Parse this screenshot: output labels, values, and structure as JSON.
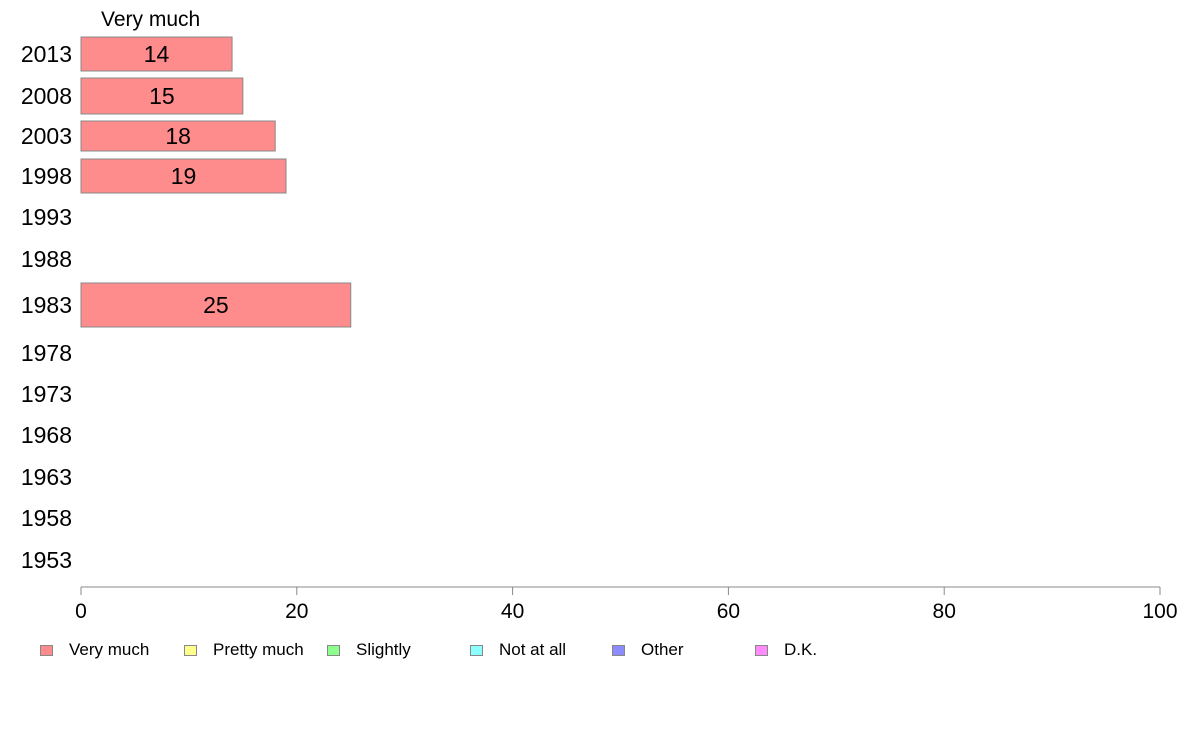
{
  "chart_data": {
    "type": "bar",
    "orientation": "horizontal",
    "series_header": "Very much",
    "categories": [
      "2013",
      "2008",
      "2003",
      "1998",
      "1993",
      "1988",
      "1983",
      "1978",
      "1973",
      "1968",
      "1963",
      "1958",
      "1953"
    ],
    "series": [
      {
        "name": "Very much",
        "values": [
          14,
          15,
          18,
          19,
          null,
          null,
          25,
          null,
          null,
          null,
          null,
          null,
          null
        ]
      }
    ],
    "xlim": [
      0,
      100
    ],
    "xticks": [
      0,
      20,
      40,
      60,
      80,
      100
    ],
    "grid": false,
    "legend_position": "bottom",
    "legend": [
      {
        "label": "Very much",
        "color": "#ff8c8c"
      },
      {
        "label": "Pretty much",
        "color": "#ffff8c"
      },
      {
        "label": "Slightly",
        "color": "#8cff8c"
      },
      {
        "label": "Not at all",
        "color": "#8cffff"
      },
      {
        "label": "Other",
        "color": "#8c8cff"
      },
      {
        "label": "D.K.",
        "color": "#ff8cff"
      }
    ]
  }
}
